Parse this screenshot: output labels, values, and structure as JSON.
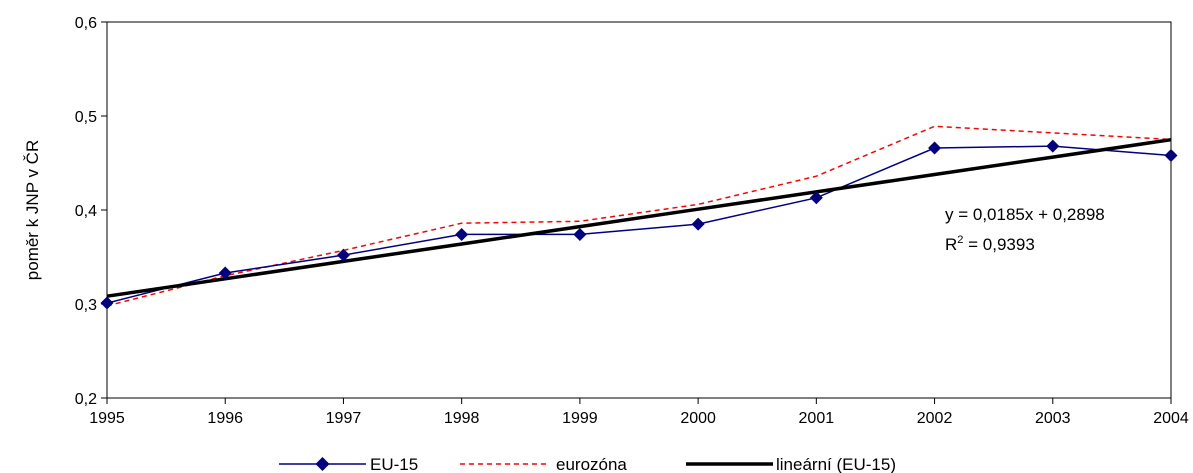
{
  "chart_data": {
    "type": "line",
    "title": "",
    "xlabel": "",
    "ylabel": "poměr k JNP v ČR",
    "categories": [
      "1995",
      "1996",
      "1997",
      "1998",
      "1999",
      "2000",
      "2001",
      "2002",
      "2003",
      "2004"
    ],
    "ylim": [
      0.2,
      0.6
    ],
    "yticks": [
      0.2,
      0.3,
      0.4,
      0.5,
      0.6
    ],
    "ytick_labels": [
      "0,2",
      "0,3",
      "0,4",
      "0,5",
      "0,6"
    ],
    "grid": false,
    "legend_position": "bottom",
    "series": [
      {
        "name": "EU-15",
        "style": "solid-with-diamond-markers",
        "color": "#000080",
        "values": [
          0.301,
          0.333,
          0.352,
          0.374,
          0.374,
          0.385,
          0.413,
          0.466,
          0.468,
          0.458
        ]
      },
      {
        "name": "eurozóna",
        "style": "dashed",
        "color": "#ff0000",
        "values": [
          0.298,
          0.33,
          0.357,
          0.386,
          0.388,
          0.406,
          0.436,
          0.489,
          0.482,
          0.475
        ]
      },
      {
        "name": "lineární (EU-15)",
        "style": "solid-thick",
        "color": "#000000",
        "values": [
          0.3083,
          0.3268,
          0.3453,
          0.3638,
          0.3823,
          0.4008,
          0.4193,
          0.4378,
          0.4563,
          0.4748
        ]
      }
    ],
    "annotations": {
      "equation": "y = 0,0185x + 0,2898",
      "r2_prefix": "R",
      "r2_sup": "2",
      "r2_suffix": " = 0,9393"
    }
  }
}
